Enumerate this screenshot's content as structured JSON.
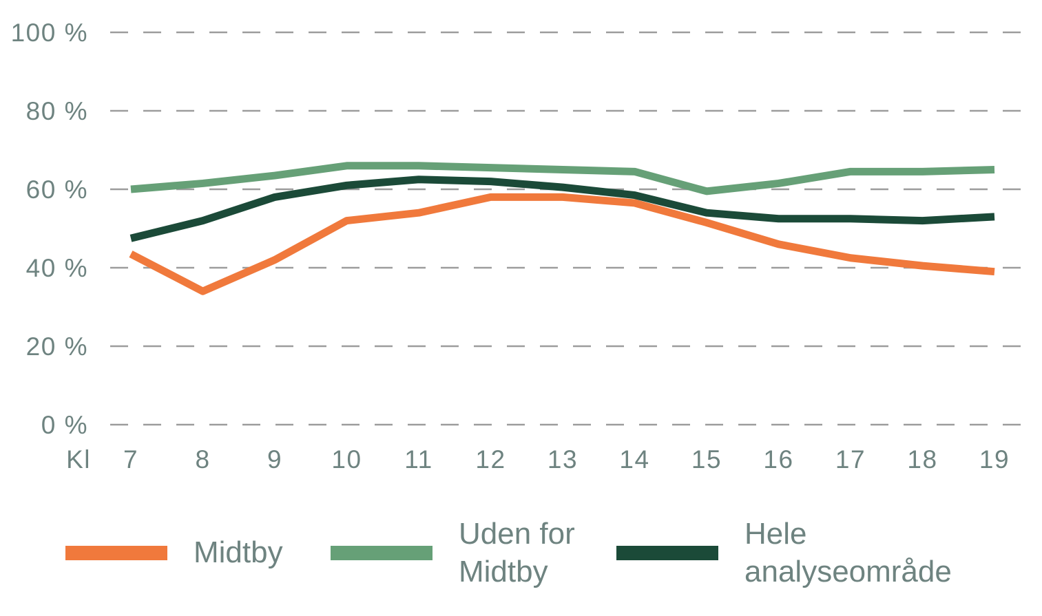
{
  "chart_data": {
    "type": "line",
    "title": "",
    "xlabel": "Kl",
    "ylabel": "",
    "x_axis_prefix": "Kl",
    "x": [
      7,
      8,
      9,
      10,
      11,
      12,
      13,
      14,
      15,
      16,
      17,
      18,
      19
    ],
    "x_tick_labels": [
      "7",
      "8",
      "9",
      "10",
      "11",
      "12",
      "13",
      "14",
      "15",
      "16",
      "17",
      "18",
      "19"
    ],
    "y_ticks": [
      0,
      20,
      40,
      60,
      80,
      100
    ],
    "y_tick_labels": [
      "0 %",
      "20 %",
      "40 %",
      "60 %",
      "80 %",
      "100 %"
    ],
    "ylim": [
      0,
      100
    ],
    "grid": "horizontal-dashed",
    "gridline_color": "#9c9c9c",
    "axis_text_color": "#6e8380",
    "legend_position": "bottom",
    "series": [
      {
        "name": "Midtby",
        "color": "#F0793C",
        "values": [
          43.5,
          34,
          42,
          52,
          54,
          58,
          58,
          56.5,
          51.5,
          46,
          42.5,
          40.5,
          39
        ]
      },
      {
        "name": "Uden for Midtby",
        "color": "#66A077",
        "values": [
          60,
          61.5,
          63.5,
          66,
          66,
          65.5,
          65,
          64.5,
          59.5,
          61.5,
          64.5,
          64.5,
          65
        ]
      },
      {
        "name": "Hele analyseområde",
        "color": "#1B4A38",
        "values": [
          47.5,
          52,
          58,
          61,
          62.5,
          62,
          60.5,
          58.5,
          54,
          52.5,
          52.5,
          52,
          53
        ]
      }
    ]
  },
  "legend": {
    "items": [
      {
        "lines": [
          "Midtby"
        ]
      },
      {
        "lines": [
          "Uden for",
          "Midtby"
        ]
      },
      {
        "lines": [
          "Hele",
          "analyseområde"
        ]
      }
    ]
  }
}
